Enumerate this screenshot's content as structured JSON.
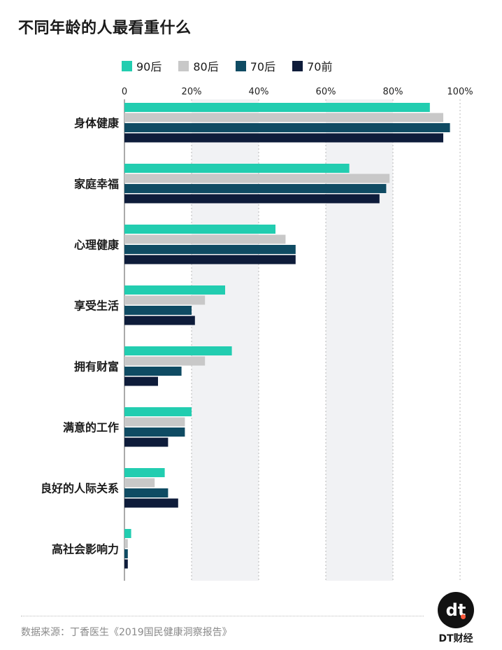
{
  "header": {
    "title": "不同年龄的人最看重什么"
  },
  "legend": [
    {
      "name": "90后",
      "color": "#22CDB0"
    },
    {
      "name": "80后",
      "color": "#C8C8C8"
    },
    {
      "name": "70后",
      "color": "#0F4B63"
    },
    {
      "name": "70前",
      "color": "#0E1C3A"
    }
  ],
  "chart_data": {
    "type": "bar",
    "orientation": "horizontal",
    "categories": [
      "身体健康",
      "家庭幸福",
      "心理健康",
      "享受生活",
      "拥有财富",
      "满意的工作",
      "良好的人际关系",
      "高社会影响力"
    ],
    "series": [
      {
        "name": "90后",
        "color": "#22CDB0",
        "values": [
          91,
          67,
          45,
          30,
          32,
          20,
          12,
          2
        ]
      },
      {
        "name": "80后",
        "color": "#C8C8C8",
        "values": [
          95,
          79,
          48,
          24,
          24,
          18,
          9,
          1
        ]
      },
      {
        "name": "70后",
        "color": "#0F4B63",
        "values": [
          97,
          78,
          51,
          20,
          17,
          18,
          13,
          1
        ]
      },
      {
        "name": "70前",
        "color": "#0E1C3A",
        "values": [
          95,
          76,
          51,
          21,
          10,
          13,
          16,
          1
        ]
      }
    ],
    "xticks": [
      "0",
      "20%",
      "40%",
      "60%",
      "80%",
      "100%"
    ],
    "xlim": [
      0,
      100
    ],
    "grid": true,
    "legend_position": "top"
  },
  "footer": {
    "source": "数据来源：丁香医生《2019国民健康洞察报告》",
    "brand_mark": "dt",
    "brand": "DT财经"
  }
}
